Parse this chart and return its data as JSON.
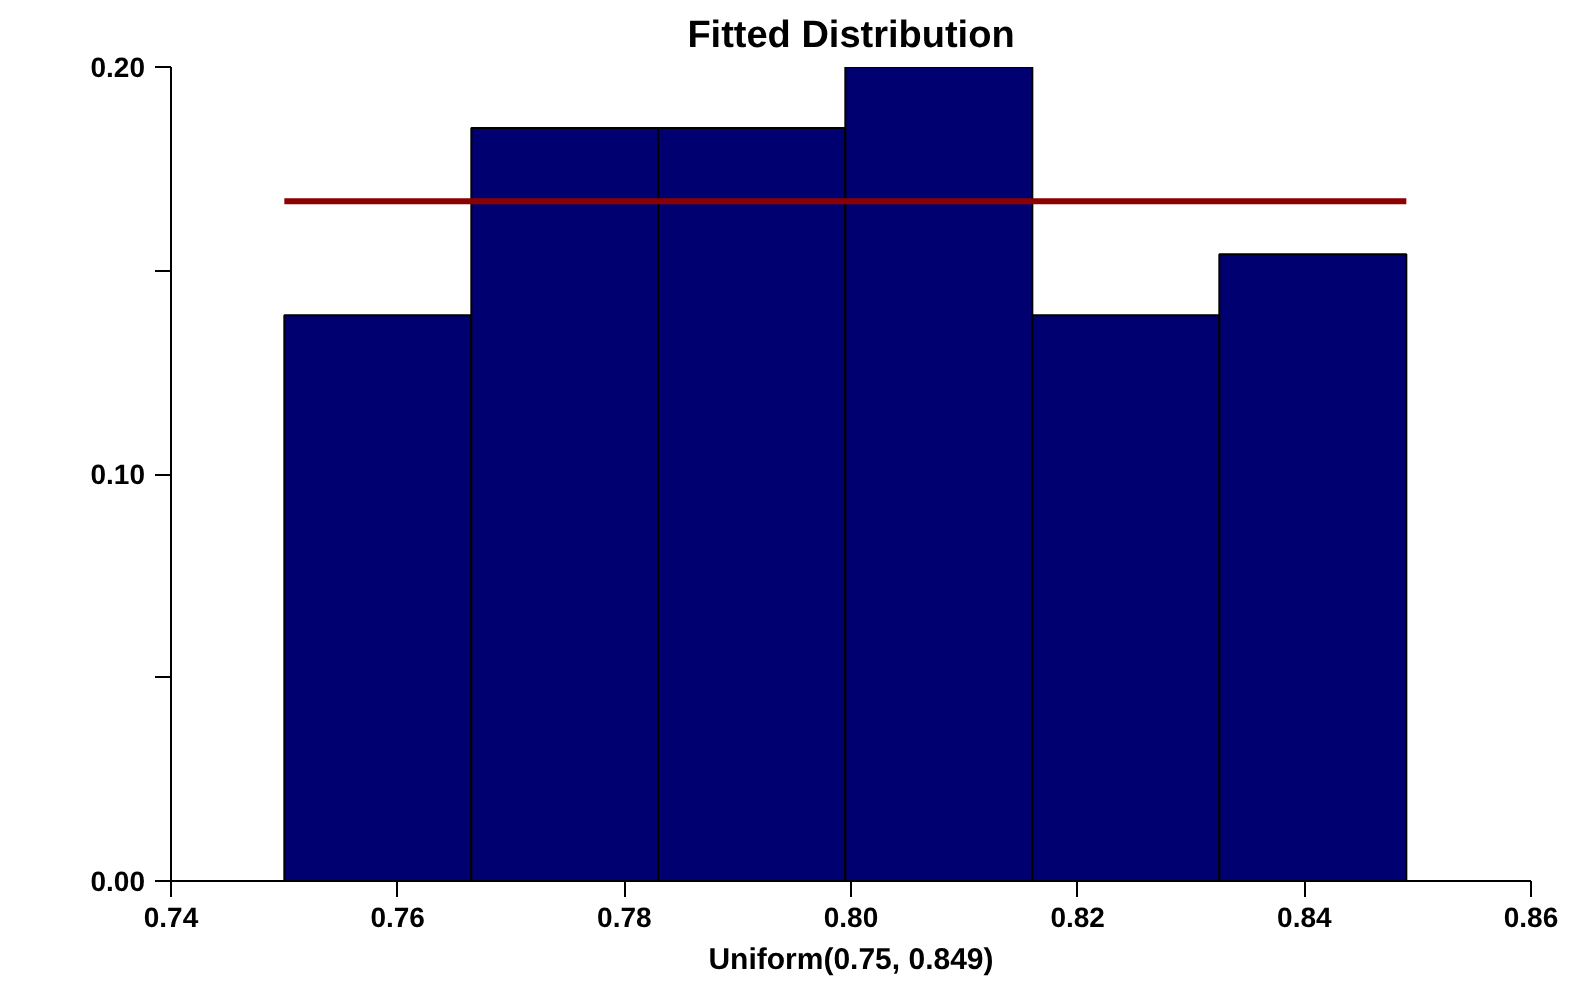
{
  "chart_data": {
    "type": "histogram",
    "title": "Fitted Distribution",
    "xlabel": "Uniform(0.75, 0.849)",
    "bins": [
      0.75,
      0.7665,
      0.783,
      0.7995,
      0.816,
      0.8325,
      0.849
    ],
    "values": [
      0.139,
      0.185,
      0.185,
      0.2,
      0.139,
      0.154
    ],
    "color": "#000070",
    "series": [
      {
        "type": "line",
        "x": [
          0.75,
          0.849
        ],
        "values": [
          0.167,
          0.167
        ],
        "color": "#8b0000"
      }
    ],
    "xlim": [
      0.74,
      0.86
    ],
    "ylim": [
      0,
      0.2
    ],
    "xticks": [
      0.74,
      0.76,
      0.78,
      {
        "value": 0.8,
        "label": "0.80"
      },
      0.82,
      0.84,
      0.86
    ],
    "yticks": [
      {
        "value": 0,
        "label": "0.00"
      },
      {
        "value": 0.05,
        "label": null
      },
      {
        "value": 0.1,
        "label": "0.10"
      },
      {
        "value": 0.15,
        "label": null
      },
      {
        "value": 0.2,
        "label": "0.20"
      }
    ],
    "grid": false
  }
}
